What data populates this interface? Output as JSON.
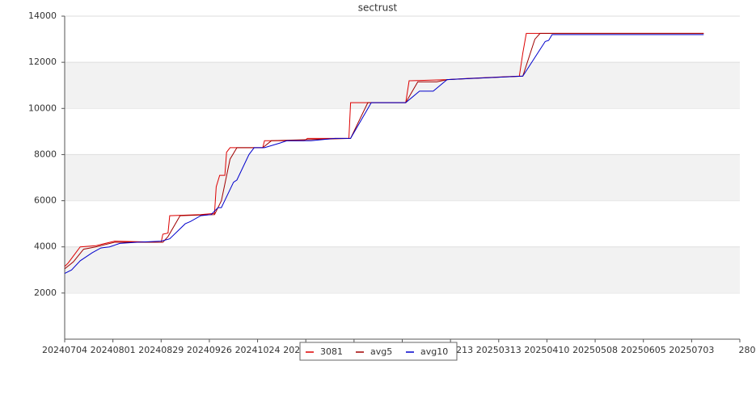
{
  "chart_data": {
    "type": "line",
    "title": "sectrust",
    "xlim": [
      "20240704",
      "20250731"
    ],
    "xticks": [
      "20240704",
      "20240801",
      "20240829",
      "20240926",
      "20241024",
      "20241121",
      "20241219",
      "20250116",
      "20250213",
      "20250313",
      "20250410",
      "20250508",
      "20250605",
      "20250703",
      {
        "value": "20250731",
        "label": "280"
      }
    ],
    "ylim": [
      0,
      14000
    ],
    "yticks": [
      2000,
      4000,
      6000,
      8000,
      10000,
      12000,
      14000
    ],
    "grid": true,
    "legend": "bottom",
    "series": [
      {
        "name": "3081",
        "color": "#dd0000",
        "x": [
          "20240704",
          "20240706",
          "20240709",
          "20240713",
          "20240722",
          "20240802",
          "20240829",
          "20240830",
          "20240902",
          "20240903",
          "20240921",
          "20240929",
          "20240930",
          "20241002",
          "20241005",
          "20241006",
          "20241008",
          "20241027",
          "20241028",
          "20241120",
          "20241122",
          "20241216",
          "20241217",
          "20250118",
          "20250120",
          "20250211",
          "20250223",
          "20250309",
          "20250325",
          "20250327",
          "20250329",
          "20250710"
        ],
        "values": [
          3150,
          3300,
          3600,
          4000,
          4050,
          4250,
          4200,
          4550,
          4600,
          5350,
          5400,
          5450,
          6600,
          7100,
          7100,
          8100,
          8300,
          8300,
          8600,
          8600,
          8700,
          8700,
          10250,
          10250,
          11200,
          11250,
          11300,
          11350,
          11400,
          12400,
          13250,
          13250
        ]
      },
      {
        "name": "avg5",
        "color": "#a00000",
        "x": [
          "20240704",
          "20240709",
          "20240715",
          "20240722",
          "20240802",
          "20240830",
          "20240902",
          "20240909",
          "20240929",
          "20241003",
          "20241008",
          "20241012",
          "20241027",
          "20241101",
          "20241122",
          "20241217",
          "20241227",
          "20250118",
          "20250125",
          "20250205",
          "20250211",
          "20250327",
          "20250403",
          "20250406",
          "20250710"
        ],
        "values": [
          3050,
          3350,
          3900,
          4000,
          4200,
          4200,
          4450,
          5350,
          5400,
          6000,
          7800,
          8300,
          8300,
          8600,
          8650,
          8700,
          10250,
          10250,
          11150,
          11150,
          11250,
          11400,
          13000,
          13250,
          13250
        ]
      },
      {
        "name": "avg10",
        "color": "#0000cc",
        "x": [
          "20240704",
          "20240708",
          "20240713",
          "20240720",
          "20240725",
          "20240730",
          "20240805",
          "20240815",
          "20240829",
          "20240903",
          "20240912",
          "20240915",
          "20240921",
          "20240927",
          "20241001",
          "20241003",
          "20241010",
          "20241012",
          "20241019",
          "20241022",
          "20241028",
          "20241106",
          "20241110",
          "20241124",
          "20241208",
          "20241217",
          "20241229",
          "20250118",
          "20250126",
          "20250203",
          "20250211",
          "20250225",
          "20250327",
          "20250409",
          "20250411",
          "20250413",
          "20250710"
        ],
        "values": [
          2850,
          3000,
          3400,
          3750,
          3950,
          4000,
          4150,
          4200,
          4250,
          4350,
          5000,
          5100,
          5350,
          5400,
          5700,
          5700,
          6800,
          6900,
          8000,
          8300,
          8300,
          8500,
          8600,
          8600,
          8700,
          8700,
          10250,
          10250,
          10750,
          10750,
          11250,
          11300,
          11400,
          12900,
          12950,
          13200,
          13200
        ]
      }
    ]
  }
}
